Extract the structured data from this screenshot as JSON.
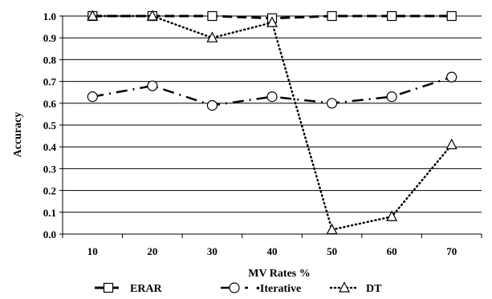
{
  "chart_data": {
    "type": "line",
    "xlabel": "MV Rates %",
    "ylabel": "Accuracy",
    "x": [
      10,
      20,
      30,
      40,
      50,
      60,
      70
    ],
    "xticks": [
      "10",
      "20",
      "30",
      "40",
      "50",
      "60",
      "70"
    ],
    "ylim": [
      0,
      1.0
    ],
    "yticks": [
      "0.0",
      "0.1",
      "0.2",
      "0.3",
      "0.4",
      "0.5",
      "0.6",
      "0.7",
      "0.8",
      "0.9",
      "1.0"
    ],
    "grid": "horizontal",
    "legend_position": "bottom",
    "series": [
      {
        "name": "ERAR",
        "values": [
          1.0,
          1.0,
          1.0,
          0.99,
          1.0,
          1.0,
          1.0
        ],
        "marker": "square",
        "line": "dashed"
      },
      {
        "name": "Iterative",
        "values": [
          0.63,
          0.68,
          0.59,
          0.63,
          0.6,
          0.63,
          0.72
        ],
        "marker": "circle",
        "line": "dash-dot"
      },
      {
        "name": "DT",
        "values": [
          1.0,
          1.0,
          0.9,
          0.97,
          0.02,
          0.08,
          0.41
        ],
        "marker": "triangle",
        "line": "dotted"
      }
    ],
    "legend": [
      "ERAR",
      "•Iterative",
      "DT"
    ]
  }
}
